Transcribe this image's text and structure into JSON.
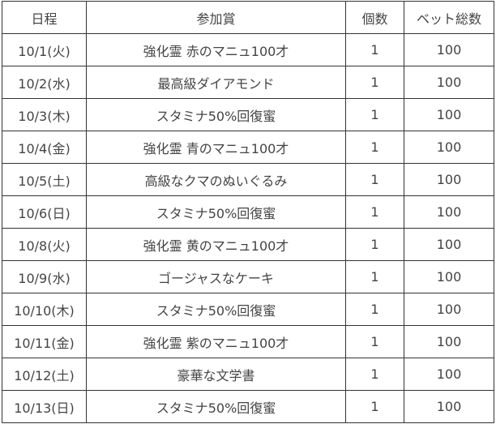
{
  "headers": [
    "日程",
    "参加賞",
    "個数",
    "ベット総数"
  ],
  "rows": [
    [
      "10/1(火)",
      "強化霊 赤のマニュ100才",
      "1",
      "100"
    ],
    [
      "10/2(水)",
      "最高級ダイアモンド",
      "1",
      "100"
    ],
    [
      "10/3(木)",
      "スタミナ50%回復蜜",
      "1",
      "100"
    ],
    [
      "10/4(金)",
      "強化霊 青のマニュ100才",
      "1",
      "100"
    ],
    [
      "10/5(土)",
      "高級なクマのぬいぐるみ",
      "1",
      "100"
    ],
    [
      "10/6(日)",
      "スタミナ50%回復蜜",
      "1",
      "100"
    ],
    [
      "10/8(火)",
      "強化霊 黄のマニュ100才",
      "1",
      "100"
    ],
    [
      "10/9(水)",
      "ゴージャスなケーキ",
      "1",
      "100"
    ],
    [
      "10/10(木)",
      "スタミナ50%回復蜜",
      "1",
      "100"
    ],
    [
      "10/11(金)",
      "強化霊 紫のマニュ100才",
      "1",
      "100"
    ],
    [
      "10/12(土)",
      "豪華な文学書",
      "1",
      "100"
    ],
    [
      "10/13(日)",
      "スタミナ50%回復蜜",
      "1",
      "100"
    ]
  ]
}
